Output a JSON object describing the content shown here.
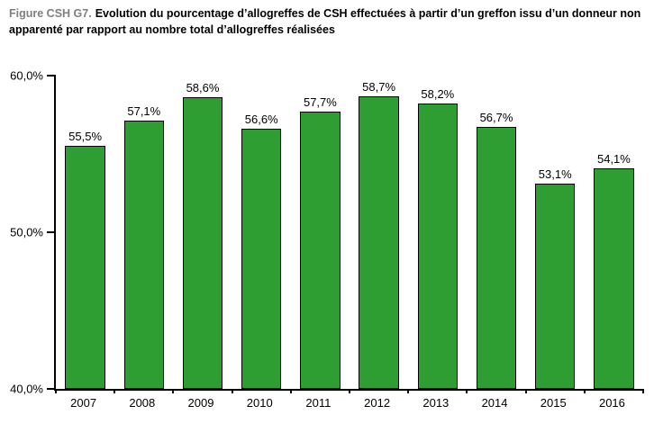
{
  "title": {
    "prefix": "Figure CSH G7.",
    "text": "Evolution du pourcentage d’allogreffes de CSH effectuées à partir d’un greffon issu d’un donneur non apparenté par rapport au nombre total d’allogreffes réalisées"
  },
  "chart_data": {
    "type": "bar",
    "categories": [
      "2007",
      "2008",
      "2009",
      "2010",
      "2011",
      "2012",
      "2013",
      "2014",
      "2015",
      "2016"
    ],
    "values": [
      55.5,
      57.1,
      58.6,
      56.6,
      57.7,
      58.7,
      58.2,
      56.7,
      53.1,
      54.1
    ],
    "value_labels": [
      "55,5%",
      "57,1%",
      "58,6%",
      "56,6%",
      "57,7%",
      "58,7%",
      "58,2%",
      "56,7%",
      "53,1%",
      "54,1%"
    ],
    "title": "",
    "xlabel": "",
    "ylabel": "",
    "ylim": [
      40,
      60
    ],
    "yticks": [
      {
        "value": 60,
        "label": "60,0%"
      },
      {
        "value": 50,
        "label": "50,0%"
      },
      {
        "value": 40,
        "label": "40,0%"
      }
    ],
    "grid": false,
    "legend": "none",
    "bar_color": "#2F9E32",
    "bar_border_color": "#000000"
  }
}
